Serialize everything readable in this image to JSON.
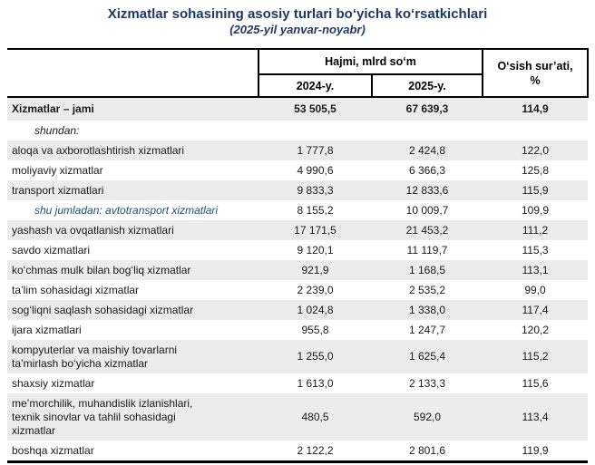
{
  "page": {
    "title": "Xizmatlar sohasining asosiy turlari bo‘yicha ko‘rsatkichlari",
    "subtitle": "(2025-yil yanvar-noyabr)"
  },
  "table": {
    "headers": {
      "volume_group": "Hajmi, mlrd so‘m",
      "col_2024": "2024-y.",
      "col_2025": "2025-y.",
      "growth": "O‘sish sur’ati,\n%"
    },
    "rows": [
      {
        "label": "Xizmatlar – jami",
        "v2024": "53 505,5",
        "v2025": "67 639,3",
        "growth": "114,9",
        "style": "total"
      },
      {
        "label": "shundan:",
        "v2024": "",
        "v2025": "",
        "growth": "",
        "style": "note"
      },
      {
        "label": "aloqa va axborotlashtirish xizmatlari",
        "v2024": "1 777,8",
        "v2025": "2 424,8",
        "growth": "122,0",
        "style": ""
      },
      {
        "label": "moliyaviy xizmatlar",
        "v2024": "4 990,6",
        "v2025": "6 366,3",
        "growth": "125,8",
        "style": ""
      },
      {
        "label": "transport xizmatlari",
        "v2024": "9 833,3",
        "v2025": "12 833,6",
        "growth": "115,9",
        "style": ""
      },
      {
        "label": "shu jumladan: avtotransport xizmatlari",
        "v2024": "8 155,2",
        "v2025": "10 009,7",
        "growth": "109,9",
        "style": "note blue"
      },
      {
        "label": "yashash va ovqatlanish xizmatlari",
        "v2024": "17 171,5",
        "v2025": "21 453,2",
        "growth": "111,2",
        "style": ""
      },
      {
        "label": "savdo xizmatlari",
        "v2024": "9 120,1",
        "v2025": "11 119,7",
        "growth": "115,3",
        "style": ""
      },
      {
        "label": "ko‘chmas mulk bilan bog‘liq xizmatlar",
        "v2024": "921,9",
        "v2025": "1 168,5",
        "growth": "113,1",
        "style": ""
      },
      {
        "label": "ta’lim sohasidagi xizmatlar",
        "v2024": "2 239,0",
        "v2025": "2 535,2",
        "growth": "99,0",
        "style": ""
      },
      {
        "label": "sog‘liqni saqlash sohasidagi xizmatlar",
        "v2024": "1 024,8",
        "v2025": "1 338,0",
        "growth": "117,4",
        "style": ""
      },
      {
        "label": "ijara xizmatlari",
        "v2024": "955,8",
        "v2025": "1 247,7",
        "growth": "120,2",
        "style": ""
      },
      {
        "label": "kompyuterlar va maishiy tovarlarni\nta’mirlash bo‘yicha xizmatlar",
        "v2024": "1 255,0",
        "v2025": "1 625,4",
        "growth": "115,2",
        "style": ""
      },
      {
        "label": "shaxsiy xizmatlar",
        "v2024": "1 613,0",
        "v2025": "2 133,3",
        "growth": "115,6",
        "style": ""
      },
      {
        "label": "me’morchilik, muhandislik izlanishlari,\ntexnik sinovlar va tahlil sohasidagi\nxizmatlar",
        "v2024": "480,5",
        "v2025": "592,0",
        "growth": "113,4",
        "style": ""
      },
      {
        "label": "boshqa xizmatlar",
        "v2024": "2 122,2",
        "v2025": "2 801,6",
        "growth": "119,9",
        "style": ""
      }
    ]
  },
  "colors": {
    "heading_navy": "#1f3864",
    "note_blue": "#1f4e79",
    "stripe_gray": "#ececec",
    "border_black": "#000000",
    "text": "#1a1a1a"
  }
}
